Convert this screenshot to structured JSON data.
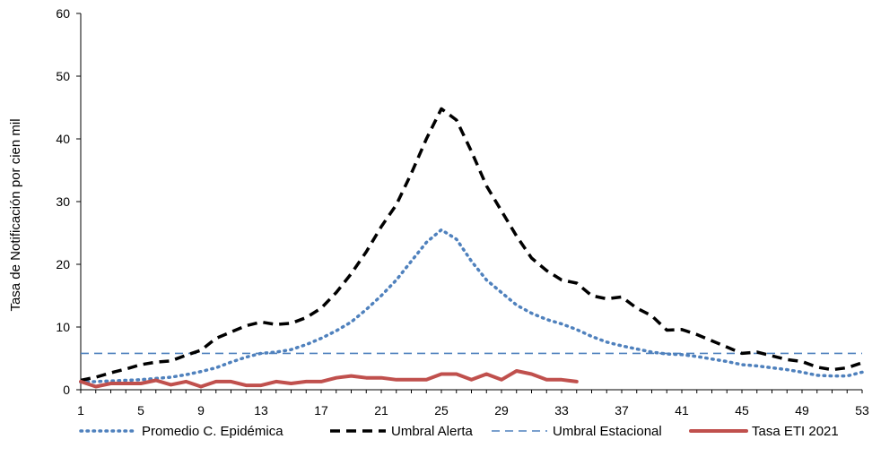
{
  "chart_data": {
    "type": "line",
    "title": "",
    "xlabel": "",
    "ylabel": "Tasa de Notificación por cien mil",
    "ylim": [
      0,
      60
    ],
    "yticks": [
      0,
      10,
      20,
      30,
      40,
      50,
      60
    ],
    "xlim": [
      1,
      53
    ],
    "xticks": [
      1,
      5,
      9,
      13,
      17,
      21,
      25,
      29,
      33,
      37,
      41,
      45,
      49,
      53
    ],
    "grid": false,
    "legend_position": "bottom",
    "series": [
      {
        "name": "Promedio  C. Epidémica",
        "style": "dotted",
        "color": "#4f81bd",
        "x": [
          1,
          2,
          3,
          4,
          5,
          6,
          7,
          8,
          9,
          10,
          11,
          12,
          13,
          14,
          15,
          16,
          17,
          18,
          19,
          20,
          21,
          22,
          23,
          24,
          25,
          26,
          27,
          28,
          29,
          30,
          31,
          32,
          33,
          34,
          35,
          36,
          37,
          38,
          39,
          40,
          41,
          42,
          43,
          44,
          45,
          46,
          47,
          48,
          49,
          50,
          51,
          52,
          53
        ],
        "values": [
          1.2,
          1.3,
          1.4,
          1.5,
          1.6,
          1.8,
          2.0,
          2.4,
          2.9,
          3.5,
          4.4,
          5.2,
          5.8,
          6.0,
          6.4,
          7.2,
          8.2,
          9.4,
          10.8,
          12.8,
          15.0,
          17.5,
          20.5,
          23.5,
          25.5,
          24.0,
          20.5,
          17.5,
          15.5,
          13.5,
          12.2,
          11.2,
          10.5,
          9.6,
          8.5,
          7.6,
          7.0,
          6.5,
          6.0,
          5.7,
          5.6,
          5.3,
          4.9,
          4.5,
          4.0,
          3.8,
          3.5,
          3.2,
          2.8,
          2.3,
          2.2,
          2.2,
          2.8
        ]
      },
      {
        "name": "Umbral Alerta",
        "style": "dashed",
        "color": "#000000",
        "x": [
          1,
          2,
          3,
          4,
          5,
          6,
          7,
          8,
          9,
          10,
          11,
          12,
          13,
          14,
          15,
          16,
          17,
          18,
          19,
          20,
          21,
          22,
          23,
          24,
          25,
          26,
          27,
          28,
          29,
          30,
          31,
          32,
          33,
          34,
          35,
          36,
          37,
          38,
          39,
          40,
          41,
          42,
          43,
          44,
          45,
          46,
          47,
          48,
          49,
          50,
          51,
          52,
          53
        ],
        "values": [
          1.5,
          2.0,
          2.7,
          3.3,
          4.0,
          4.4,
          4.6,
          5.5,
          6.3,
          8.2,
          9.2,
          10.2,
          10.8,
          10.4,
          10.6,
          11.5,
          13.0,
          15.5,
          18.5,
          22.0,
          26.0,
          29.5,
          34.5,
          40.0,
          44.8,
          43.0,
          38.0,
          32.5,
          28.5,
          24.5,
          21.0,
          19.0,
          17.5,
          17.0,
          15.0,
          14.5,
          14.8,
          13.0,
          11.8,
          9.5,
          9.6,
          8.8,
          7.8,
          6.8,
          5.8,
          6.0,
          5.4,
          4.8,
          4.5,
          3.6,
          3.2,
          3.5,
          4.3
        ]
      },
      {
        "name": "Umbral Estacional",
        "style": "dashed-thin",
        "color": "#4f81bd",
        "x": [
          1,
          53
        ],
        "values": [
          5.8,
          5.8
        ]
      },
      {
        "name": "Tasa ETI  2021",
        "style": "solid",
        "color": "#c0504d",
        "x": [
          1,
          2,
          3,
          4,
          5,
          6,
          7,
          8,
          9,
          10,
          11,
          12,
          13,
          14,
          15,
          16,
          17,
          18,
          19,
          20,
          21,
          22,
          23,
          24,
          25,
          26,
          27,
          28,
          29,
          30,
          31,
          32,
          33,
          34
        ],
        "values": [
          1.3,
          0.5,
          1.0,
          1.0,
          1.0,
          1.5,
          0.8,
          1.3,
          0.5,
          1.3,
          1.3,
          0.7,
          0.7,
          1.3,
          1.0,
          1.3,
          1.3,
          1.9,
          2.2,
          1.9,
          1.9,
          1.6,
          1.6,
          1.6,
          2.5,
          2.5,
          1.6,
          2.5,
          1.6,
          3.0,
          2.5,
          1.6,
          1.6,
          1.3
        ]
      }
    ]
  }
}
